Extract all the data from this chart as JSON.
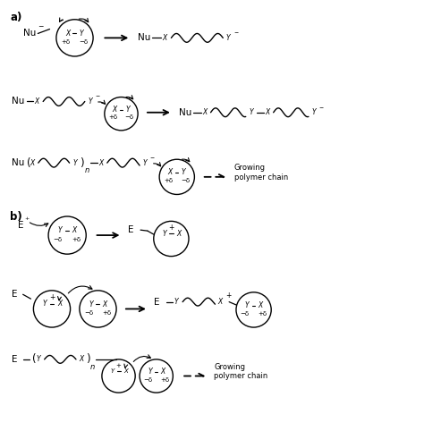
{
  "title": "",
  "bg_color": "#ffffff",
  "line_color": "#000000",
  "text_color": "#000000",
  "fig_width": 4.74,
  "fig_height": 4.82,
  "dpi": 100,
  "section_a_label": "a)",
  "section_b_label": "b)",
  "growing_polymer_chain": "Growing\npolymer chain"
}
